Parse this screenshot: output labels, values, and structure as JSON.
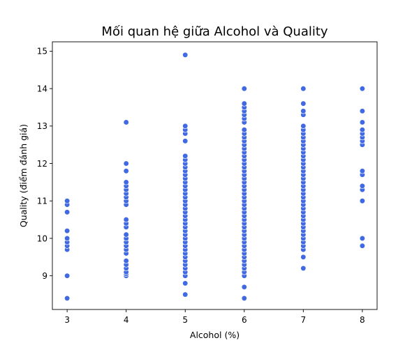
{
  "chart_data": {
    "type": "scatter",
    "title": "Mối quan hệ giữa Alcohol và Quality",
    "xlabel": "Alcohol (%)",
    "ylabel": "Quality (điểm đánh giá)",
    "xlim": [
      2.75,
      8.25
    ],
    "ylim": [
      8.1,
      15.25
    ],
    "xticks": [
      3,
      4,
      5,
      6,
      7,
      8
    ],
    "yticks": [
      9,
      10,
      11,
      12,
      13,
      14,
      15
    ],
    "grid": false,
    "marker_color": "#4169E1",
    "series": [
      {
        "x": 3,
        "y": [
          8.4,
          9.0,
          9.7,
          9.8,
          9.9,
          10.0,
          10.2,
          10.7,
          10.9,
          11.0
        ]
      },
      {
        "x": 4,
        "y": [
          9.0,
          9.05,
          9.1,
          9.2,
          9.3,
          9.4,
          9.6,
          9.7,
          9.8,
          9.9,
          10.0,
          10.1,
          10.3,
          10.4,
          10.5,
          10.9,
          11.0,
          11.1,
          11.2,
          11.3,
          11.4,
          11.5,
          11.8,
          12.0,
          13.1
        ]
      },
      {
        "x": 5,
        "y": [
          8.5,
          8.8,
          9.0,
          9.1,
          9.2,
          9.3,
          9.4,
          9.5,
          9.6,
          9.7,
          9.8,
          9.9,
          10.0,
          10.1,
          10.2,
          10.3,
          10.4,
          10.5,
          10.6,
          10.7,
          10.8,
          10.9,
          11.0,
          11.1,
          11.2,
          11.3,
          11.4,
          11.5,
          11.6,
          11.7,
          11.8,
          11.9,
          12.0,
          12.1,
          12.2,
          12.6,
          12.8,
          12.9,
          13.0,
          14.9
        ]
      },
      {
        "x": 6,
        "y": [
          8.4,
          8.7,
          9.0,
          9.1,
          9.2,
          9.3,
          9.4,
          9.5,
          9.6,
          9.7,
          9.8,
          9.9,
          10.0,
          10.1,
          10.2,
          10.3,
          10.4,
          10.5,
          10.6,
          10.7,
          10.8,
          10.9,
          11.0,
          11.1,
          11.2,
          11.3,
          11.4,
          11.5,
          11.6,
          11.7,
          11.8,
          11.9,
          12.0,
          12.1,
          12.2,
          12.3,
          12.4,
          12.5,
          12.6,
          12.7,
          12.8,
          12.9,
          13.1,
          13.2,
          13.3,
          13.4,
          13.5,
          13.6,
          14.0
        ]
      },
      {
        "x": 7,
        "y": [
          9.2,
          9.5,
          9.7,
          9.8,
          9.9,
          10.0,
          10.1,
          10.2,
          10.3,
          10.4,
          10.5,
          10.6,
          10.7,
          10.8,
          10.9,
          11.0,
          11.1,
          11.2,
          11.3,
          11.4,
          11.5,
          11.6,
          11.7,
          11.8,
          11.9,
          12.0,
          12.1,
          12.2,
          12.3,
          12.4,
          12.5,
          12.6,
          12.7,
          12.8,
          12.9,
          13.0,
          13.3,
          13.4,
          13.6,
          14.0
        ]
      },
      {
        "x": 8,
        "y": [
          9.8,
          10.0,
          11.0,
          11.3,
          11.4,
          11.7,
          11.8,
          12.5,
          12.6,
          12.7,
          12.8,
          12.9,
          13.1,
          13.4,
          14.0
        ]
      }
    ]
  }
}
